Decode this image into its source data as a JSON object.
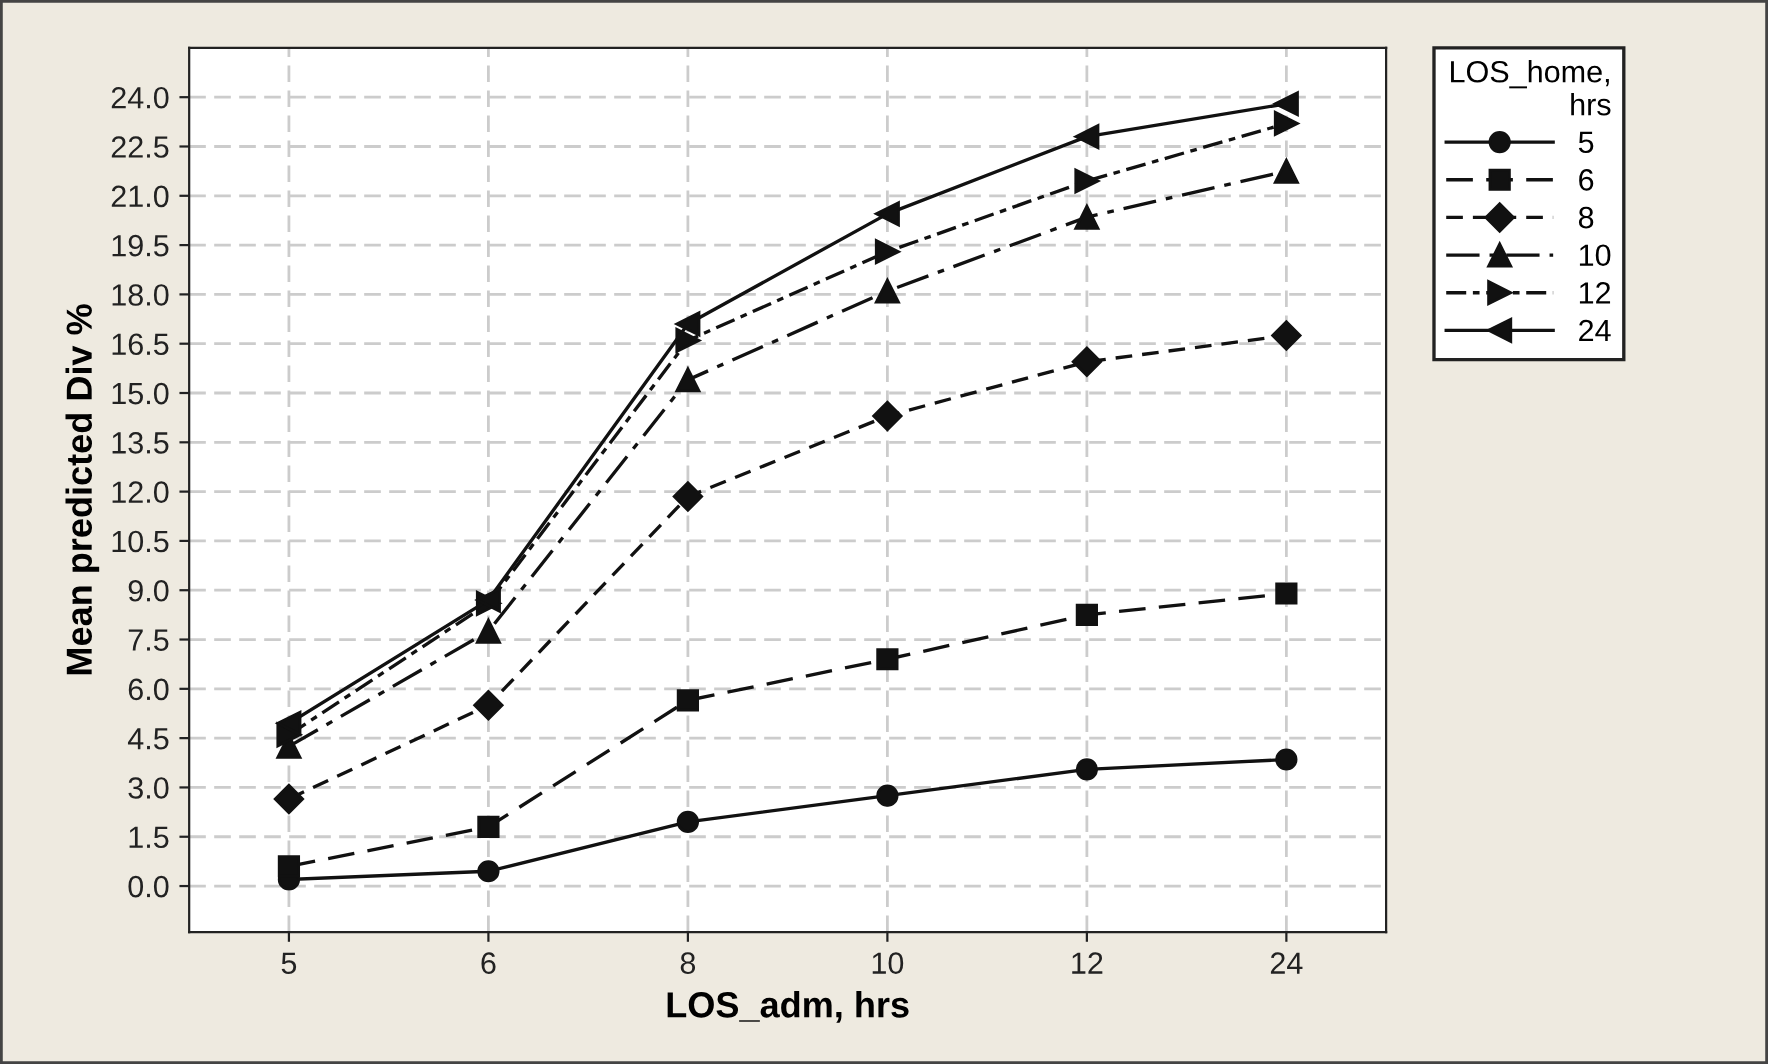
{
  "chart_data": {
    "type": "line",
    "xlabel": "LOS_adm, hrs",
    "ylabel": "Mean predicted Div %",
    "legend_title": "LOS_home,\nhrs",
    "legend": "right",
    "grid": true,
    "categories": [
      "5",
      "6",
      "8",
      "10",
      "12",
      "24"
    ],
    "ylim": [
      -1.4,
      25.5
    ],
    "yticks": [
      {
        "value": 0,
        "label": "0.0"
      },
      1.5,
      {
        "value": 3,
        "label": "3.0"
      },
      4.5,
      {
        "value": 6,
        "label": "6.0"
      },
      7.5,
      {
        "value": 9,
        "label": "9.0"
      },
      10.5,
      {
        "value": 12,
        "label": "12.0"
      },
      13.5,
      {
        "value": 15,
        "label": "15.0"
      },
      16.5,
      {
        "value": 18,
        "label": "18.0"
      },
      19.5,
      {
        "value": 21,
        "label": "21.0"
      },
      22.5,
      {
        "value": 24,
        "label": "24.0"
      }
    ],
    "series": [
      {
        "name": "5",
        "color": "#111111",
        "marker": "circle",
        "line_style": "solid",
        "values": [
          0.2,
          0.45,
          1.95,
          2.75,
          3.55,
          3.85
        ]
      },
      {
        "name": "6",
        "color": "#111111",
        "marker": "square",
        "line_style": "dashed",
        "values": [
          0.6,
          1.8,
          5.65,
          6.9,
          8.25,
          8.9
        ]
      },
      {
        "name": "8",
        "color": "#111111",
        "marker": "diamond",
        "line_style": "dashed",
        "values": [
          2.65,
          5.5,
          11.85,
          14.3,
          15.95,
          16.75
        ]
      },
      {
        "name": "10",
        "color": "#111111",
        "marker": "triangle",
        "line_style": "dashed",
        "values": [
          4.25,
          7.75,
          15.4,
          18.1,
          20.35,
          21.75
        ]
      },
      {
        "name": "12",
        "color": "#111111",
        "marker": "triangle-right",
        "line_style": "dashed",
        "values": [
          4.6,
          8.6,
          16.6,
          19.3,
          21.45,
          23.2
        ]
      },
      {
        "name": "24",
        "color": "#111111",
        "marker": "triangle-left",
        "line_style": "solid",
        "values": [
          4.95,
          8.7,
          17.1,
          20.45,
          22.8,
          23.8
        ]
      }
    ]
  }
}
